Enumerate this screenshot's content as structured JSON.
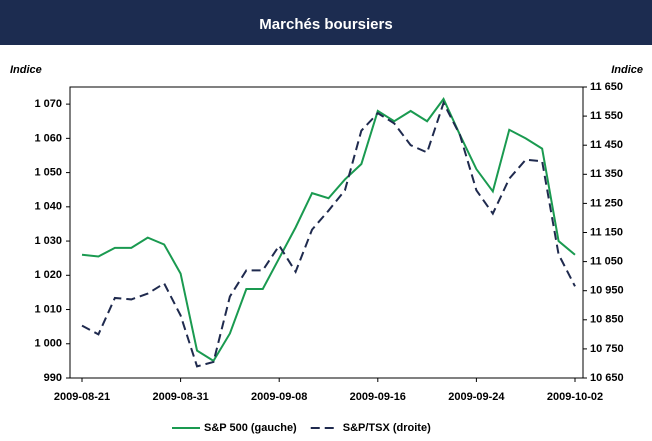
{
  "chart_data": {
    "type": "line",
    "title": "Marchés boursiers",
    "y_label": "Indice",
    "y2_label": "Indice",
    "categories": [
      "2009-08-21",
      null,
      null,
      null,
      null,
      null,
      "2009-08-31",
      null,
      null,
      null,
      null,
      null,
      "2009-09-08",
      null,
      null,
      null,
      null,
      null,
      "2009-09-16",
      null,
      null,
      null,
      null,
      null,
      "2009-09-24",
      null,
      null,
      null,
      null,
      null,
      "2009-10-02"
    ],
    "series": [
      {
        "name": "S&P 500 (gauche)",
        "color": "#1a9a50",
        "dash": false,
        "axis": "y",
        "values": [
          1026,
          1025.5,
          1028,
          1028,
          1031,
          1029,
          1020.5,
          998,
          995,
          1003,
          1016,
          1016,
          1025,
          1034,
          1044,
          1042.5,
          1048,
          1052.5,
          1068,
          1065,
          1068,
          1065,
          1071.5,
          1061,
          1051,
          1044.5,
          1062.5,
          1060,
          1057,
          1030,
          1026
        ]
      },
      {
        "name": "S&P/TSX (droite)",
        "color": "#1f2a4e",
        "dash": true,
        "axis": "y2",
        "values": [
          10830,
          10800,
          10925,
          10920,
          10940,
          10975,
          10865,
          10690,
          10705,
          10930,
          11020,
          11020,
          11105,
          11015,
          11160,
          11225,
          11295,
          11500,
          11560,
          11525,
          11450,
          11425,
          11595,
          11485,
          11295,
          11215,
          11335,
          11400,
          11395,
          11075,
          10965
        ]
      }
    ],
    "ylim": [
      990,
      1075
    ],
    "yticks": [
      990,
      {
        "value": 1000,
        "label": "1 000"
      },
      {
        "value": 1010,
        "label": "1 010"
      },
      {
        "value": 1020,
        "label": "1 020"
      },
      {
        "value": 1030,
        "label": "1 030"
      },
      {
        "value": 1040,
        "label": "1 040"
      },
      {
        "value": 1050,
        "label": "1 050"
      },
      {
        "value": 1060,
        "label": "1 060"
      },
      {
        "value": 1070,
        "label": "1 070"
      }
    ],
    "y2lim": [
      10650,
      11650
    ],
    "y2ticks": [
      {
        "value": 10650,
        "label": "10 650"
      },
      {
        "value": 10750,
        "label": "10 750"
      },
      {
        "value": 10850,
        "label": "10 850"
      },
      {
        "value": 10950,
        "label": "10 950"
      },
      {
        "value": 11050,
        "label": "11 050"
      },
      {
        "value": 11150,
        "label": "11 150"
      },
      {
        "value": 11250,
        "label": "11 250"
      },
      {
        "value": 11350,
        "label": "11 350"
      },
      {
        "value": 11450,
        "label": "11 450"
      },
      {
        "value": 11550,
        "label": "11 550"
      },
      {
        "value": 11650,
        "label": "11 650"
      }
    ],
    "grid": false
  }
}
